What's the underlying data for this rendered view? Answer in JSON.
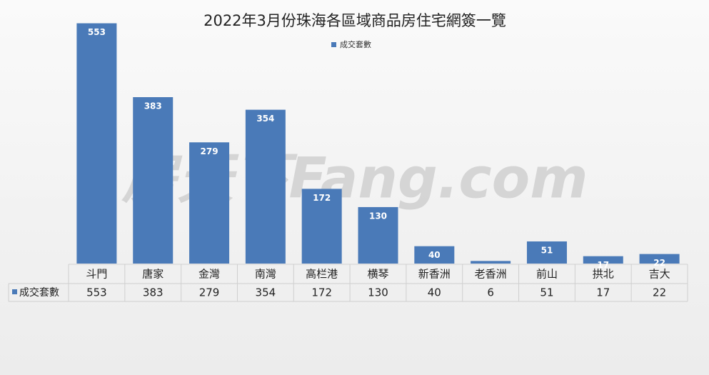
{
  "chart_data": {
    "type": "bar",
    "title": "2022年3月份珠海各區域商品房住宅網簽一覽",
    "watermark": "房天下Fang.com",
    "categories": [
      "斗門",
      "唐家",
      "金灣",
      "南灣",
      "高栏港",
      "横琴",
      "新香洲",
      "老香洲",
      "前山",
      "拱北",
      "吉大"
    ],
    "series": [
      {
        "name": "成交套數",
        "color": "#4a7ab8",
        "values": [
          553,
          383,
          279,
          354,
          172,
          130,
          40,
          6,
          51,
          17,
          22
        ]
      }
    ],
    "ylim": [
      0,
      600
    ],
    "legend": "top"
  }
}
